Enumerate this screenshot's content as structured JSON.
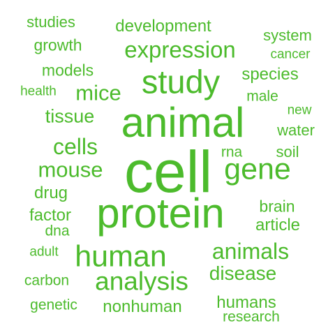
{
  "word_cloud": {
    "color": "#4cbb2c",
    "words": [
      {
        "text": "cell"
      },
      {
        "text": "animal"
      },
      {
        "text": "protein"
      },
      {
        "text": "study"
      },
      {
        "text": "gene"
      },
      {
        "text": "human"
      },
      {
        "text": "expression"
      },
      {
        "text": "analysis"
      },
      {
        "text": "animals"
      },
      {
        "text": "mouse"
      },
      {
        "text": "mice"
      },
      {
        "text": "cells"
      },
      {
        "text": "disease"
      },
      {
        "text": "tissue"
      },
      {
        "text": "development"
      },
      {
        "text": "nonhuman"
      },
      {
        "text": "species"
      },
      {
        "text": "article"
      },
      {
        "text": "humans"
      },
      {
        "text": "drug"
      },
      {
        "text": "factor"
      },
      {
        "text": "brain"
      },
      {
        "text": "growth"
      },
      {
        "text": "models"
      },
      {
        "text": "system"
      },
      {
        "text": "water"
      },
      {
        "text": "studies"
      },
      {
        "text": "soil"
      },
      {
        "text": "carbon"
      },
      {
        "text": "genetic"
      },
      {
        "text": "research"
      },
      {
        "text": "health"
      },
      {
        "text": "male"
      },
      {
        "text": "rna"
      },
      {
        "text": "dna"
      },
      {
        "text": "cancer"
      },
      {
        "text": "new"
      },
      {
        "text": "adult"
      }
    ]
  }
}
